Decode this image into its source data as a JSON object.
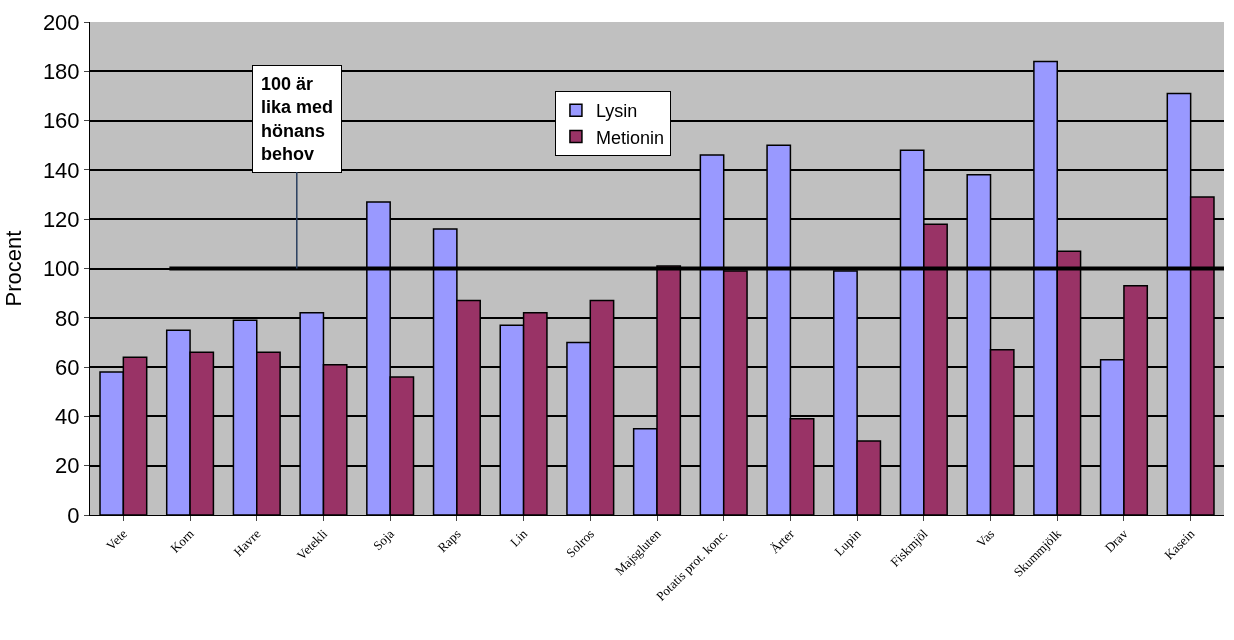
{
  "chart_data": {
    "type": "bar",
    "ylabel": "Procent",
    "categories": [
      "Vete",
      "Korn",
      "Havre",
      "Vetekli",
      "Soja",
      "Raps",
      "Lin",
      "Solros",
      "Majsgluten",
      "Potatis prot. konc.",
      "Ärter",
      "Lupin",
      "Fiskmjöl",
      "Vas",
      "Skummjölk",
      "Drav",
      "Kasein"
    ],
    "series": [
      {
        "name": "Lysin",
        "color": "#9999ff",
        "values": [
          58,
          75,
          79,
          82,
          127,
          116,
          77,
          70,
          35,
          146,
          150,
          99,
          148,
          138,
          184,
          63,
          171
        ]
      },
      {
        "name": "Metionin",
        "color": "#993366",
        "values": [
          64,
          66,
          66,
          61,
          56,
          87,
          82,
          87,
          101,
          99,
          39,
          30,
          118,
          67,
          107,
          93,
          129
        ]
      }
    ],
    "ylim": [
      0,
      200
    ],
    "yticks": [
      0,
      20,
      40,
      60,
      80,
      100,
      120,
      140,
      160,
      180,
      200
    ],
    "grid": "y",
    "legend": "top",
    "ref_lines": [
      {
        "axis": "y",
        "value": 100,
        "label": "100 är lika med hönans behov",
        "color": "#000000"
      }
    ]
  }
}
